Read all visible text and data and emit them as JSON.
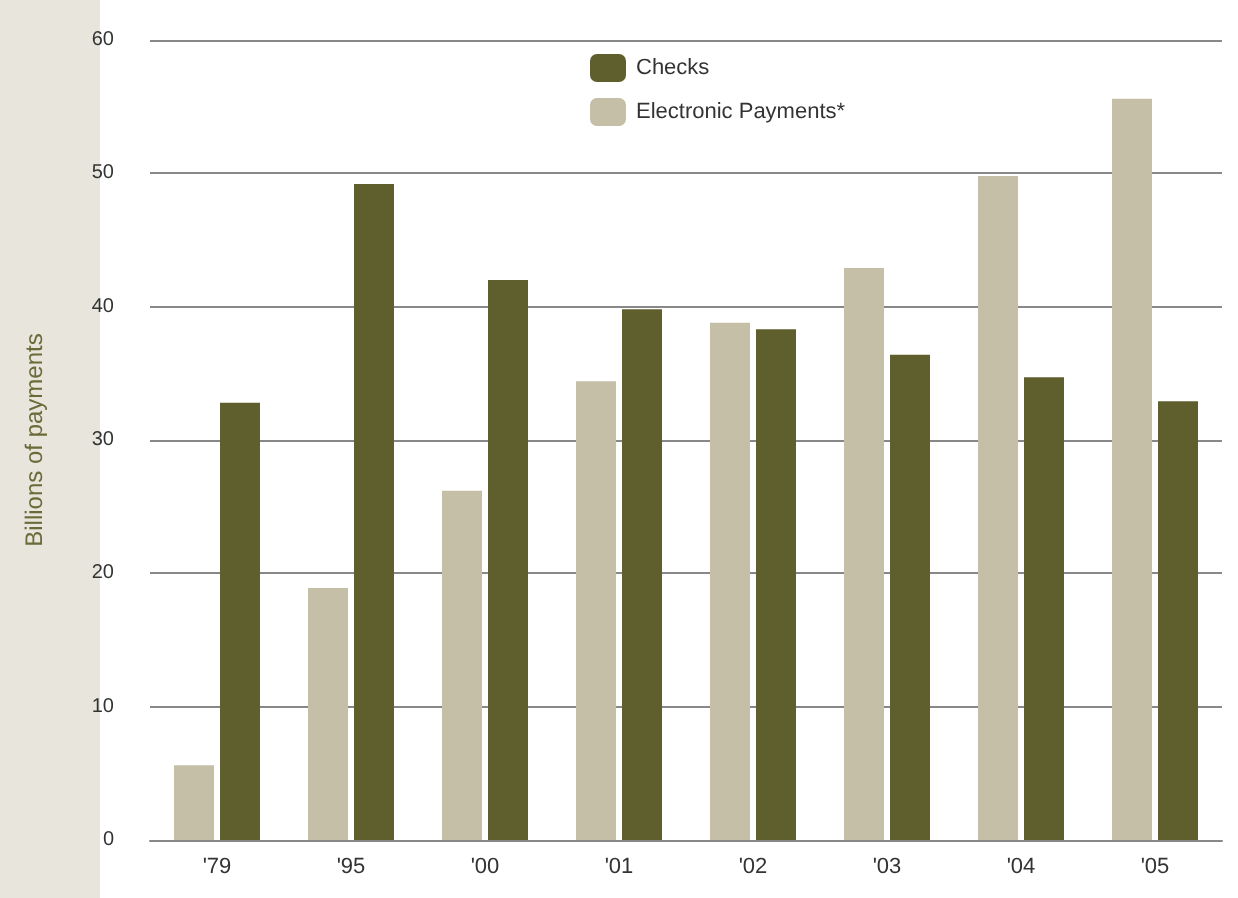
{
  "chart_data": {
    "type": "bar",
    "ylabel": "Billions of payments",
    "categories": [
      "'79",
      "'95",
      "'00",
      "'01",
      "'02",
      "'03",
      "'04",
      "'05"
    ],
    "series": [
      {
        "name": "Electronic Payments*",
        "color": "#c5bfa8",
        "values": [
          5.6,
          18.9,
          26.2,
          34.4,
          38.8,
          42.9,
          49.8,
          55.6
        ]
      },
      {
        "name": "Checks",
        "color": "#5f5f2d",
        "values": [
          32.8,
          49.2,
          42.0,
          39.8,
          38.3,
          36.4,
          34.7,
          32.9
        ]
      }
    ],
    "ylim": [
      0,
      60
    ],
    "yticks": [
      0,
      10,
      20,
      30,
      40,
      50,
      60
    ],
    "grid": "y",
    "legend": "top"
  }
}
